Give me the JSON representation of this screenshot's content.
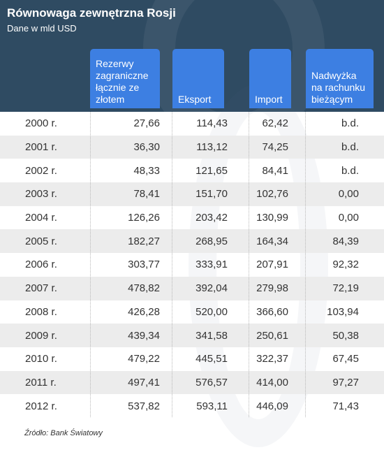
{
  "header": {
    "title": "Równowaga zewnętrzna Rosji",
    "subtitle": "Dane w mld USD"
  },
  "colors": {
    "header_bg": "#2f4b62",
    "column_header_bg": "#3d7fe2",
    "alt_row_bg": "#ececec"
  },
  "chart_data": {
    "type": "table",
    "title": "Równowaga zewnętrzna Rosji",
    "subtitle": "Dane w mld USD",
    "columns": [
      {
        "label_lines": [
          "Rezerwy",
          "zagraniczne",
          "łącznie ze",
          "złotem"
        ]
      },
      {
        "label_lines": [
          "Eksport"
        ]
      },
      {
        "label_lines": [
          "Import"
        ]
      },
      {
        "label_lines": [
          "Nadwyżka",
          "na rachunku",
          "bieżącym"
        ]
      }
    ],
    "rows": [
      {
        "year": "2000 r.",
        "values": [
          "27,66",
          "114,43",
          "62,42",
          "b.d."
        ]
      },
      {
        "year": "2001 r.",
        "values": [
          "36,30",
          "113,12",
          "74,25",
          "b.d."
        ]
      },
      {
        "year": "2002 r.",
        "values": [
          "48,33",
          "121,65",
          "84,41",
          "b.d."
        ]
      },
      {
        "year": "2003 r.",
        "values": [
          "78,41",
          "151,70",
          "102,76",
          "0,00"
        ]
      },
      {
        "year": "2004 r.",
        "values": [
          "126,26",
          "203,42",
          "130,99",
          "0,00"
        ]
      },
      {
        "year": "2005 r.",
        "values": [
          "182,27",
          "268,95",
          "164,34",
          "84,39"
        ]
      },
      {
        "year": "2006 r.",
        "values": [
          "303,77",
          "333,91",
          "207,91",
          "92,32"
        ]
      },
      {
        "year": "2007 r.",
        "values": [
          "478,82",
          "392,04",
          "279,98",
          "72,19"
        ]
      },
      {
        "year": "2008 r.",
        "values": [
          "426,28",
          "520,00",
          "366,60",
          "103,94"
        ]
      },
      {
        "year": "2009 r.",
        "values": [
          "439,34",
          "341,58",
          "250,61",
          "50,38"
        ]
      },
      {
        "year": "2010 r.",
        "values": [
          "479,22",
          "445,51",
          "322,37",
          "67,45"
        ]
      },
      {
        "year": "2011 r.",
        "values": [
          "497,41",
          "576,57",
          "414,00",
          "97,27"
        ]
      },
      {
        "year": "2012 r.",
        "values": [
          "537,82",
          "593,11",
          "446,09",
          "71,43"
        ]
      }
    ],
    "source": "Źródło: Bank Światowy"
  }
}
